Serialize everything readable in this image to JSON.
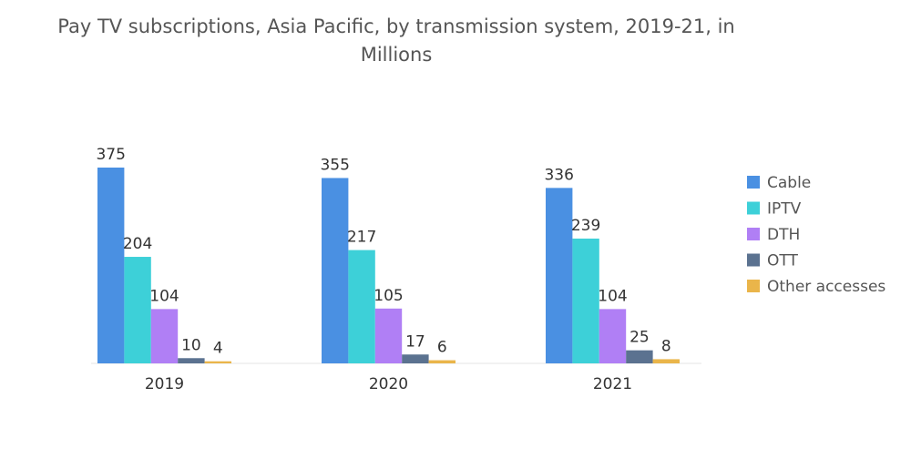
{
  "chart_data": {
    "type": "bar",
    "title": "Pay TV subscriptions, Asia Pacific, by transmission system, 2019-21, in Millions",
    "categories": [
      "2019",
      "2020",
      "2021"
    ],
    "series": [
      {
        "name": "Cable",
        "color": "#4a90e2",
        "values": [
          375,
          355,
          336
        ]
      },
      {
        "name": "IPTV",
        "color": "#3dd0d8",
        "values": [
          204,
          217,
          239
        ]
      },
      {
        "name": "DTH",
        "color": "#b07ff5",
        "values": [
          104,
          105,
          104
        ]
      },
      {
        "name": "OTT",
        "color": "#5b7290",
        "values": [
          10,
          17,
          25
        ]
      },
      {
        "name": "Other accesses",
        "color": "#eab54a",
        "values": [
          4,
          6,
          8
        ]
      }
    ],
    "ylim": [
      0,
      375
    ],
    "grid": false,
    "legend_position": "right",
    "data_labels": true
  }
}
